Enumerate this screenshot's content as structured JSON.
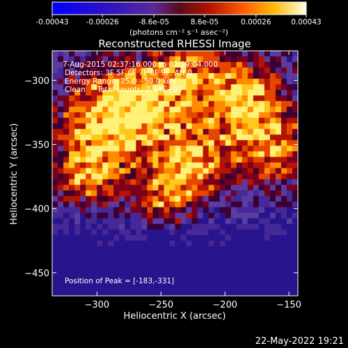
{
  "colorbar": {
    "min_label": "-0.00043",
    "tick_labels": [
      "-0.00043",
      "-0.00026",
      "-8.6e-05",
      "8.6e-05",
      "0.00026",
      "0.00043"
    ],
    "units_label": "(photons cm⁻² s⁻¹ asec⁻²)",
    "range": [
      -0.00043,
      0.00043
    ]
  },
  "chart_data": {
    "type": "heatmap",
    "title": "Reconstructed RHESSI Image",
    "xlabel": "Heliocentric X (arcsec)",
    "ylabel": "Heliocentric Y (arcsec)",
    "xlim": [
      -335,
      -143
    ],
    "ylim": [
      -468,
      -277
    ],
    "x_ticks": [
      -300,
      -250,
      -200,
      -150
    ],
    "y_ticks": [
      -300,
      -350,
      -400,
      -450
    ],
    "x_tick_labels": [
      "−300",
      "−250",
      "−200",
      "−150"
    ],
    "y_tick_labels": [
      "−300",
      "−350",
      "−400",
      "−450"
    ],
    "grid": false,
    "colormap": "hot-on-purple (RHESSI color table)",
    "peak_position": [
      -183,
      -331
    ],
    "info_lines": [
      "7-Aug-2015 02:37:16.000 to 02:39:04.000",
      "Detectors: 3F 5F 6F 7F 8F 9F, Att 0",
      "Energy Range: 25.0 - 50.0 keV",
      "Clean     Total counts: 2.44E+03"
    ],
    "peak_label": "Position of Peak = [-183,-331]"
  },
  "footer": {
    "timestamp": "22-May-2022 19:21"
  }
}
